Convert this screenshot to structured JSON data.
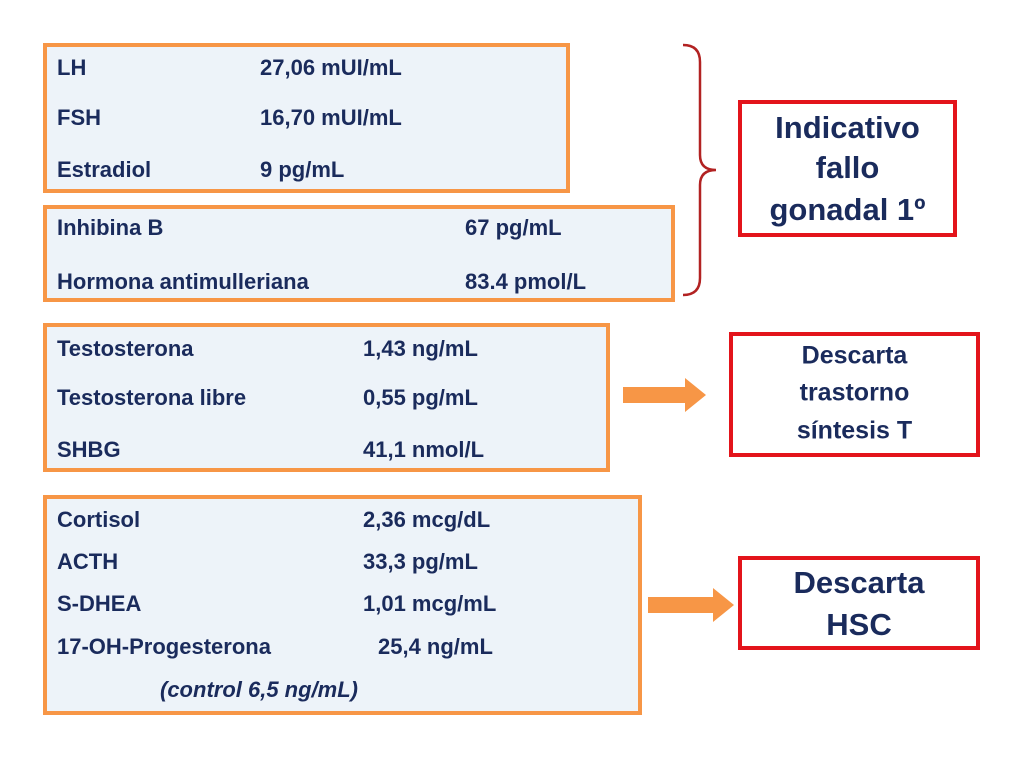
{
  "groups": [
    {
      "rows": [
        [
          "LH",
          "27,06 mUI/mL"
        ],
        [
          "FSH",
          "16,70 mUI/mL"
        ],
        [
          "Estradiol",
          "9 pg/mL"
        ]
      ]
    },
    {
      "rows": [
        [
          "Inhibina B",
          "67 pg/mL"
        ],
        [
          "Hormona antimulleriana",
          "83.4 pmol/L"
        ]
      ]
    },
    {
      "rows": [
        [
          "Testosterona",
          "1,43 ng/mL"
        ],
        [
          "Testosterona libre",
          "0,55 pg/mL"
        ],
        [
          "SHBG",
          "41,1 nmol/L"
        ]
      ]
    },
    {
      "rows": [
        [
          "Cortisol",
          "2,36 mcg/dL"
        ],
        [
          "ACTH",
          "33,3 pg/mL"
        ],
        [
          "S-DHEA",
          "1,01 mcg/mL"
        ],
        [
          "17-OH-Progesterona",
          "25,4 ng/mL"
        ]
      ],
      "note": "(control 6,5 ng/mL)"
    }
  ],
  "conclusions": [
    {
      "lines": [
        "Indicativo",
        "fallo",
        "gonadal 1º"
      ]
    },
    {
      "lines": [
        "Descarta",
        "trastorno",
        "síntesis T"
      ]
    },
    {
      "lines": [
        "Descarta",
        "HSC"
      ]
    }
  ]
}
